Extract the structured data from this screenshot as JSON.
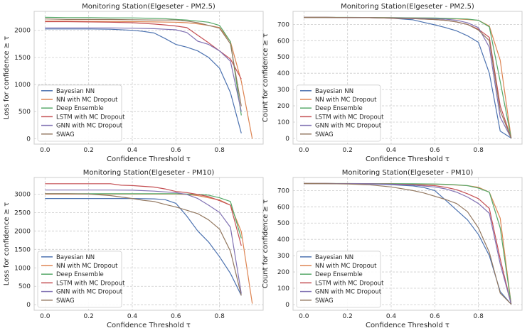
{
  "colors": {
    "Bayesian NN": "#4c72b0",
    "NN with MC Dropout": "#dd8452",
    "Deep Ensemble": "#55a868",
    "LSTM with MC Dropout": "#c44e52",
    "GNN with MC Dropout": "#8172b3",
    "SWAG": "#937860"
  },
  "chart_data": [
    {
      "type": "line",
      "title": "Monitoring Station(Elgeseter - PM2.5)",
      "xlabel": "Confidence Threshold τ",
      "ylabel": "Loss for confidence ≥ τ",
      "xlim": [
        -0.05,
        1.0
      ],
      "ylim": [
        -100,
        2350
      ],
      "xticks": [
        "0.0",
        "0.2",
        "0.4",
        "0.6",
        "0.8"
      ],
      "xtick_values": [
        0.0,
        0.2,
        0.4,
        0.6,
        0.8
      ],
      "yticks": [
        "0",
        "500",
        "1000",
        "1500",
        "2000"
      ],
      "ytick_values": [
        0,
        500,
        1000,
        1500,
        2000
      ],
      "legend_position": "lower-left",
      "series": [
        {
          "name": "Bayesian NN",
          "x": [
            0,
            0.1,
            0.2,
            0.3,
            0.4,
            0.45,
            0.5,
            0.55,
            0.6,
            0.65,
            0.7,
            0.75,
            0.8,
            0.85,
            0.9
          ],
          "y": [
            2025,
            2025,
            2025,
            2020,
            2000,
            1980,
            1950,
            1850,
            1740,
            1690,
            1620,
            1500,
            1300,
            850,
            100
          ]
        },
        {
          "name": "NN with MC Dropout",
          "x": [
            0,
            0.1,
            0.2,
            0.3,
            0.4,
            0.5,
            0.6,
            0.65,
            0.7,
            0.75,
            0.8,
            0.85,
            0.9,
            0.95
          ],
          "y": [
            2170,
            2170,
            2165,
            2165,
            2160,
            2155,
            2150,
            2140,
            2120,
            2090,
            2050,
            1790,
            1060,
            0
          ]
        },
        {
          "name": "Deep Ensemble",
          "x": [
            0,
            0.1,
            0.2,
            0.3,
            0.4,
            0.5,
            0.55,
            0.6,
            0.65,
            0.7,
            0.75,
            0.8,
            0.85,
            0.9
          ],
          "y": [
            2240,
            2235,
            2235,
            2230,
            2230,
            2220,
            2215,
            2200,
            2190,
            2170,
            2150,
            2090,
            1790,
            430
          ]
        },
        {
          "name": "LSTM with MC Dropout",
          "x": [
            0,
            0.1,
            0.2,
            0.3,
            0.4,
            0.5,
            0.55,
            0.6,
            0.65,
            0.7,
            0.75,
            0.8,
            0.85,
            0.9
          ],
          "y": [
            2160,
            2160,
            2155,
            2150,
            2140,
            2115,
            2100,
            2080,
            2050,
            1910,
            1770,
            1620,
            1470,
            1100
          ]
        },
        {
          "name": "GNN with MC Dropout",
          "x": [
            0,
            0.1,
            0.2,
            0.3,
            0.4,
            0.5,
            0.55,
            0.6,
            0.65,
            0.7,
            0.75,
            0.8,
            0.85,
            0.9
          ],
          "y": [
            2045,
            2045,
            2045,
            2045,
            2040,
            2030,
            2020,
            2010,
            1960,
            1800,
            1740,
            1620,
            1430,
            500
          ]
        },
        {
          "name": "SWAG",
          "x": [
            0,
            0.1,
            0.2,
            0.3,
            0.4,
            0.5,
            0.55,
            0.6,
            0.65,
            0.7,
            0.75,
            0.8,
            0.85,
            0.9
          ],
          "y": [
            2210,
            2200,
            2200,
            2200,
            2195,
            2190,
            2190,
            2190,
            2170,
            2140,
            2090,
            2040,
            1750,
            600
          ]
        }
      ]
    },
    {
      "type": "line",
      "title": "Monitoring Station(Elgeseter - PM2.5)",
      "xlabel": "Confidence Threshold τ",
      "ylabel": "Count for confidence ≥ τ",
      "xlim": [
        -0.05,
        1.0
      ],
      "ylim": [
        -35,
        780
      ],
      "xticks": [
        "0.0",
        "0.2",
        "0.4",
        "0.6",
        "0.8"
      ],
      "xtick_values": [
        0.0,
        0.2,
        0.4,
        0.6,
        0.8
      ],
      "yticks": [
        "0",
        "100",
        "200",
        "300",
        "400",
        "500",
        "600",
        "700"
      ],
      "ytick_values": [
        0,
        100,
        200,
        300,
        400,
        500,
        600,
        700
      ],
      "legend_position": "lower-left",
      "series": [
        {
          "name": "Bayesian NN",
          "x": [
            0,
            0.1,
            0.2,
            0.3,
            0.4,
            0.5,
            0.55,
            0.6,
            0.65,
            0.7,
            0.75,
            0.8,
            0.85,
            0.9,
            0.95
          ],
          "y": [
            743,
            743,
            742,
            741,
            738,
            728,
            712,
            697,
            680,
            660,
            630,
            590,
            400,
            45,
            2
          ]
        },
        {
          "name": "NN with MC Dropout",
          "x": [
            0,
            0.1,
            0.2,
            0.3,
            0.4,
            0.5,
            0.6,
            0.65,
            0.7,
            0.75,
            0.8,
            0.85,
            0.9,
            0.95
          ],
          "y": [
            743,
            743,
            742,
            742,
            741,
            740,
            738,
            736,
            734,
            730,
            725,
            690,
            480,
            2
          ]
        },
        {
          "name": "Deep Ensemble",
          "x": [
            0,
            0.1,
            0.2,
            0.3,
            0.4,
            0.5,
            0.6,
            0.65,
            0.7,
            0.75,
            0.8,
            0.85,
            0.9,
            0.95
          ],
          "y": [
            743,
            743,
            743,
            742,
            741,
            740,
            739,
            737,
            735,
            733,
            725,
            685,
            350,
            2
          ]
        },
        {
          "name": "LSTM with MC Dropout",
          "x": [
            0,
            0.1,
            0.2,
            0.3,
            0.4,
            0.5,
            0.6,
            0.65,
            0.7,
            0.75,
            0.8,
            0.85,
            0.9,
            0.95
          ],
          "y": [
            743,
            743,
            742,
            741,
            738,
            735,
            730,
            725,
            715,
            700,
            670,
            620,
            200,
            2
          ]
        },
        {
          "name": "GNN with MC Dropout",
          "x": [
            0,
            0.1,
            0.2,
            0.3,
            0.4,
            0.5,
            0.6,
            0.65,
            0.7,
            0.75,
            0.8,
            0.85,
            0.9,
            0.95
          ],
          "y": [
            743,
            743,
            742,
            741,
            740,
            738,
            735,
            732,
            725,
            710,
            680,
            560,
            130,
            2
          ]
        },
        {
          "name": "SWAG",
          "x": [
            0,
            0.1,
            0.2,
            0.3,
            0.4,
            0.5,
            0.6,
            0.65,
            0.7,
            0.75,
            0.8,
            0.85,
            0.9,
            0.95
          ],
          "y": [
            743,
            743,
            742,
            741,
            739,
            736,
            730,
            725,
            715,
            700,
            665,
            600,
            170,
            2
          ]
        }
      ]
    },
    {
      "type": "line",
      "title": "Monitoring Station(Elgeseter - PM10)",
      "xlabel": "Confidence Threshold τ",
      "ylabel": "Loss for confidence ≥ τ",
      "xlim": [
        -0.05,
        1.0
      ],
      "ylim": [
        -150,
        3450
      ],
      "xticks": [
        "0.0",
        "0.2",
        "0.4",
        "0.6",
        "0.8"
      ],
      "xtick_values": [
        0.0,
        0.2,
        0.4,
        0.6,
        0.8
      ],
      "yticks": [
        "0",
        "500",
        "1000",
        "1500",
        "2000",
        "2500",
        "3000"
      ],
      "ytick_values": [
        0,
        500,
        1000,
        1500,
        2000,
        2500,
        3000
      ],
      "legend_position": "lower-left",
      "series": [
        {
          "name": "Bayesian NN",
          "x": [
            0,
            0.1,
            0.2,
            0.3,
            0.4,
            0.5,
            0.55,
            0.6,
            0.65,
            0.7,
            0.75,
            0.8,
            0.85,
            0.9
          ],
          "y": [
            2880,
            2880,
            2880,
            2880,
            2880,
            2870,
            2850,
            2750,
            2400,
            2000,
            1700,
            1300,
            850,
            250
          ]
        },
        {
          "name": "NN with MC Dropout",
          "x": [
            0,
            0.1,
            0.2,
            0.3,
            0.4,
            0.5,
            0.6,
            0.65,
            0.7,
            0.75,
            0.8,
            0.85,
            0.9,
            0.95
          ],
          "y": [
            3000,
            3000,
            3000,
            3000,
            3000,
            3000,
            3000,
            2990,
            2960,
            2900,
            2840,
            2700,
            1980,
            30
          ]
        },
        {
          "name": "Deep Ensemble",
          "x": [
            0,
            0.1,
            0.2,
            0.3,
            0.4,
            0.5,
            0.6,
            0.65,
            0.7,
            0.75,
            0.8,
            0.85,
            0.9
          ],
          "y": [
            3010,
            3010,
            3010,
            3010,
            3010,
            3010,
            3010,
            3000,
            2990,
            2970,
            2900,
            2800,
            1800
          ]
        },
        {
          "name": "LSTM with MC Dropout",
          "x": [
            0,
            0.1,
            0.2,
            0.3,
            0.35,
            0.4,
            0.5,
            0.55,
            0.6,
            0.65,
            0.7,
            0.75,
            0.8,
            0.85,
            0.9
          ],
          "y": [
            3280,
            3280,
            3280,
            3280,
            3240,
            3230,
            3190,
            3140,
            3070,
            3040,
            2990,
            2930,
            2820,
            2700,
            1600
          ]
        },
        {
          "name": "GNN with MC Dropout",
          "x": [
            0,
            0.1,
            0.2,
            0.3,
            0.4,
            0.5,
            0.6,
            0.65,
            0.7,
            0.75,
            0.8,
            0.85,
            0.9
          ],
          "y": [
            3110,
            3110,
            3110,
            3110,
            3105,
            3080,
            3040,
            2990,
            2880,
            2700,
            2500,
            2100,
            300
          ]
        },
        {
          "name": "SWAG",
          "x": [
            0,
            0.1,
            0.2,
            0.3,
            0.4,
            0.45,
            0.5,
            0.55,
            0.6,
            0.65,
            0.7,
            0.75,
            0.8,
            0.85,
            0.9
          ],
          "y": [
            3010,
            3010,
            3000,
            2960,
            2880,
            2830,
            2800,
            2720,
            2650,
            2560,
            2470,
            2300,
            2050,
            1450,
            250
          ]
        }
      ]
    },
    {
      "type": "line",
      "title": "Monitoring Station(Elgeseter - PM10)",
      "xlabel": "Confidence Threshold τ",
      "ylabel": "Count for confidence ≥ τ",
      "xlim": [
        -0.05,
        1.0
      ],
      "ylim": [
        -35,
        780
      ],
      "xticks": [
        "0.0",
        "0.2",
        "0.4",
        "0.6",
        "0.8"
      ],
      "xtick_values": [
        0.0,
        0.2,
        0.4,
        0.6,
        0.8
      ],
      "yticks": [
        "0",
        "100",
        "200",
        "300",
        "400",
        "500",
        "600",
        "700"
      ],
      "ytick_values": [
        0,
        100,
        200,
        300,
        400,
        500,
        600,
        700
      ],
      "legend_position": "lower-left",
      "series": [
        {
          "name": "Bayesian NN",
          "x": [
            0,
            0.1,
            0.2,
            0.3,
            0.4,
            0.5,
            0.55,
            0.6,
            0.65,
            0.7,
            0.75,
            0.8,
            0.85,
            0.9,
            0.95
          ],
          "y": [
            743,
            743,
            742,
            740,
            736,
            728,
            718,
            700,
            640,
            580,
            520,
            430,
            300,
            80,
            2
          ]
        },
        {
          "name": "NN with MC Dropout",
          "x": [
            0,
            0.1,
            0.2,
            0.3,
            0.4,
            0.5,
            0.6,
            0.65,
            0.7,
            0.75,
            0.8,
            0.85,
            0.9,
            0.95
          ],
          "y": [
            743,
            743,
            742,
            742,
            741,
            740,
            739,
            737,
            734,
            730,
            720,
            690,
            530,
            2
          ]
        },
        {
          "name": "Deep Ensemble",
          "x": [
            0,
            0.1,
            0.2,
            0.3,
            0.4,
            0.5,
            0.6,
            0.65,
            0.7,
            0.75,
            0.8,
            0.85,
            0.9,
            0.95
          ],
          "y": [
            743,
            743,
            743,
            742,
            742,
            741,
            740,
            738,
            735,
            730,
            715,
            690,
            470,
            2
          ]
        },
        {
          "name": "LSTM with MC Dropout",
          "x": [
            0,
            0.1,
            0.2,
            0.3,
            0.4,
            0.5,
            0.6,
            0.65,
            0.7,
            0.75,
            0.8,
            0.85,
            0.9,
            0.95
          ],
          "y": [
            743,
            743,
            742,
            741,
            739,
            736,
            730,
            720,
            705,
            680,
            650,
            590,
            280,
            2
          ]
        },
        {
          "name": "GNN with MC Dropout",
          "x": [
            0,
            0.1,
            0.2,
            0.3,
            0.4,
            0.5,
            0.6,
            0.65,
            0.7,
            0.75,
            0.8,
            0.85,
            0.9,
            0.95
          ],
          "y": [
            743,
            743,
            742,
            741,
            738,
            733,
            722,
            710,
            690,
            660,
            620,
            560,
            250,
            2
          ]
        },
        {
          "name": "SWAG",
          "x": [
            0,
            0.1,
            0.2,
            0.3,
            0.4,
            0.5,
            0.55,
            0.6,
            0.65,
            0.7,
            0.75,
            0.8,
            0.85,
            0.9,
            0.95
          ],
          "y": [
            743,
            742,
            740,
            735,
            722,
            700,
            685,
            665,
            645,
            620,
            570,
            470,
            320,
            70,
            2
          ]
        }
      ]
    }
  ]
}
